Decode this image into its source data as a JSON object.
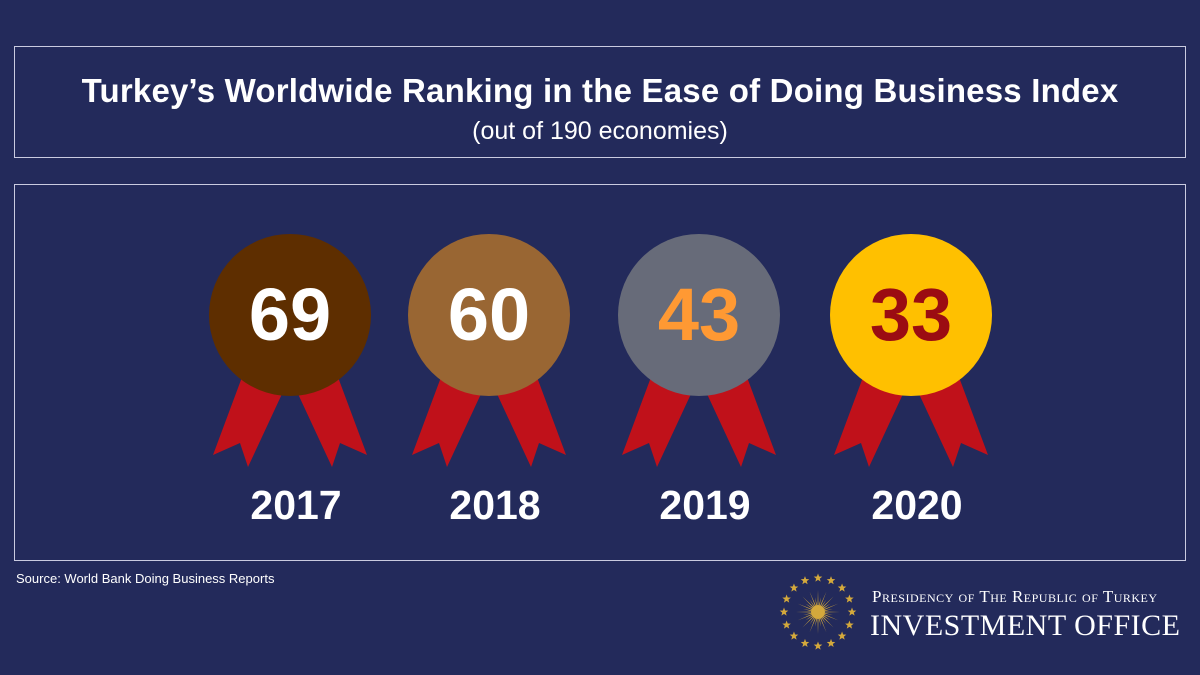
{
  "header": {
    "title": "Turkey’s Worldwide Ranking in the Ease of Doing Business Index",
    "subtitle": "(out of 190 economies)"
  },
  "chart_data": {
    "type": "table",
    "categories": [
      "2017",
      "2018",
      "2019",
      "2020"
    ],
    "series": [
      {
        "values": [
          69,
          60,
          43,
          33
        ]
      }
    ],
    "medals": [
      {
        "year": "2017",
        "rank": "69",
        "medal_color": "#5e2e00",
        "text_color": "#ffffff"
      },
      {
        "year": "2018",
        "rank": "60",
        "medal_color": "#996633",
        "text_color": "#ffffff"
      },
      {
        "year": "2019",
        "rank": "43",
        "medal_color": "#676b79",
        "text_color": "#ff9933"
      },
      {
        "year": "2020",
        "rank": "33",
        "medal_color": "#ffc000",
        "text_color": "#9b0c12"
      }
    ],
    "ribbon_color": "#c0111a"
  },
  "footer": {
    "source": "Source: World Bank Doing Business Reports",
    "org_line1": "Presidency of The Republic of Turkey",
    "org_line2": "INVESTMENT OFFICE"
  },
  "colors": {
    "background": "#232a5b",
    "border": "#c9cbe0",
    "emblem_gold": "#d4a93c"
  },
  "icons": {
    "emblem": "star-ring-sun-emblem-icon"
  }
}
